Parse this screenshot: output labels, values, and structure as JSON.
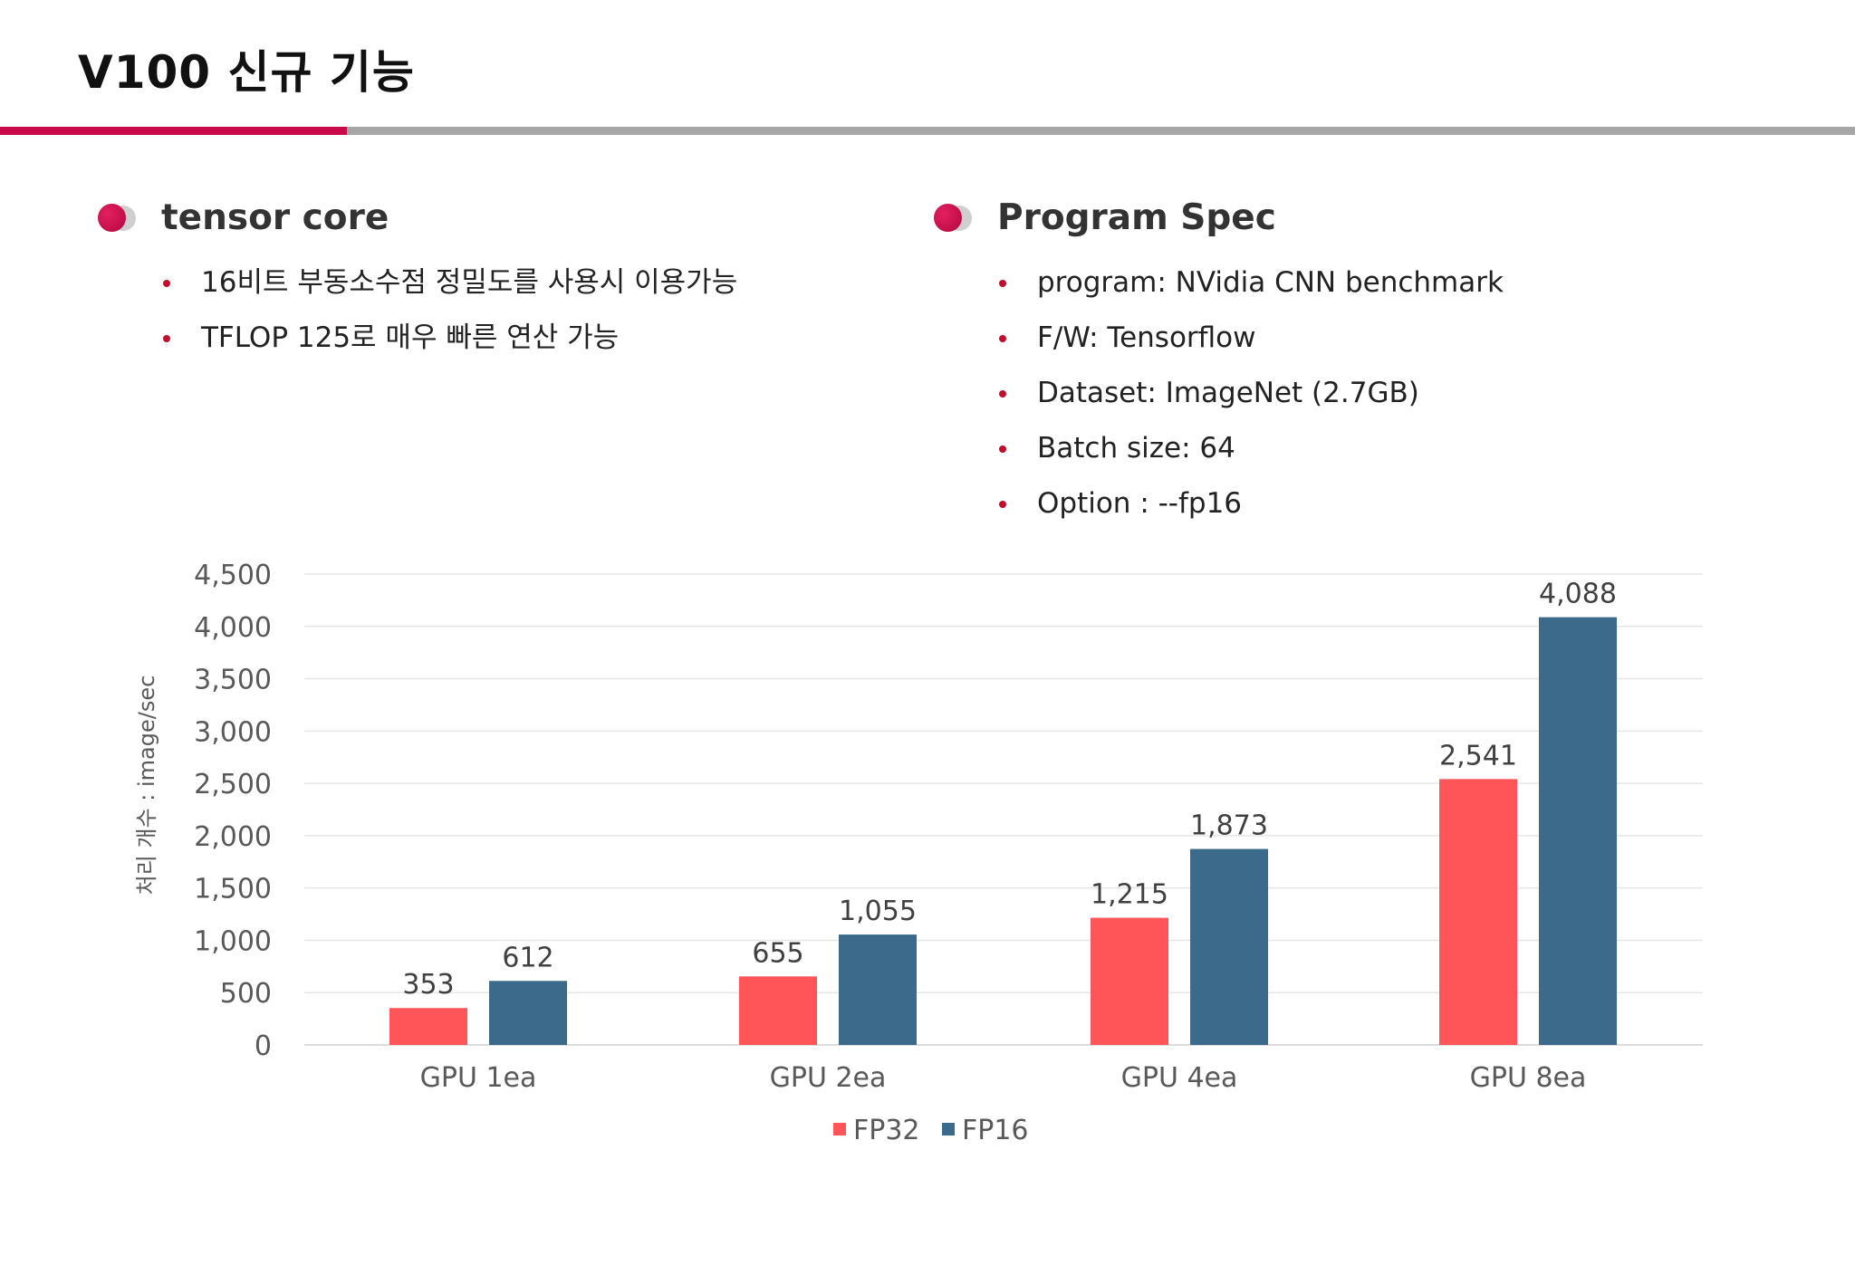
{
  "header": {
    "title": "V100 신규 기능"
  },
  "sections": {
    "left": {
      "title": "tensor core",
      "bullets": [
        "16비트 부동소수점 정밀도를 사용시 이용가능",
        "TFLOP 125로 매우 빠른 연산 가능"
      ]
    },
    "right": {
      "title": "Program Spec",
      "bullets": [
        "program: NVidia CNN benchmark",
        "F/W: Tensorflow",
        "Dataset: ImageNet (2.7GB)",
        "Batch size: 64",
        "Option : --fp16"
      ]
    }
  },
  "colors": {
    "accent": "#c80a4b",
    "fp32": "#ff5558",
    "fp16": "#3b6a8a"
  },
  "chart_data": {
    "type": "bar",
    "categories": [
      "GPU 1ea",
      "GPU 2ea",
      "GPU 4ea",
      "GPU 8ea"
    ],
    "series": [
      {
        "name": "FP32",
        "values": [
          353,
          655,
          1215,
          2541
        ]
      },
      {
        "name": "FP16",
        "values": [
          612,
          1055,
          1873,
          4088
        ]
      }
    ],
    "value_labels": [
      [
        "353",
        "655",
        "1,215",
        "2,541"
      ],
      [
        "612",
        "1,055",
        "1,873",
        "4,088"
      ]
    ],
    "ylabel": "처리 개수 : image/sec",
    "ylim": [
      0,
      4500
    ],
    "yticks": [
      0,
      500,
      1000,
      1500,
      2000,
      2500,
      3000,
      3500,
      4000,
      4500
    ],
    "ytick_labels": [
      "0",
      "500",
      "1,000",
      "1,500",
      "2,000",
      "2,500",
      "3,000",
      "3,500",
      "4,000",
      "4,500"
    ],
    "grid": true,
    "legend_position": "bottom"
  }
}
